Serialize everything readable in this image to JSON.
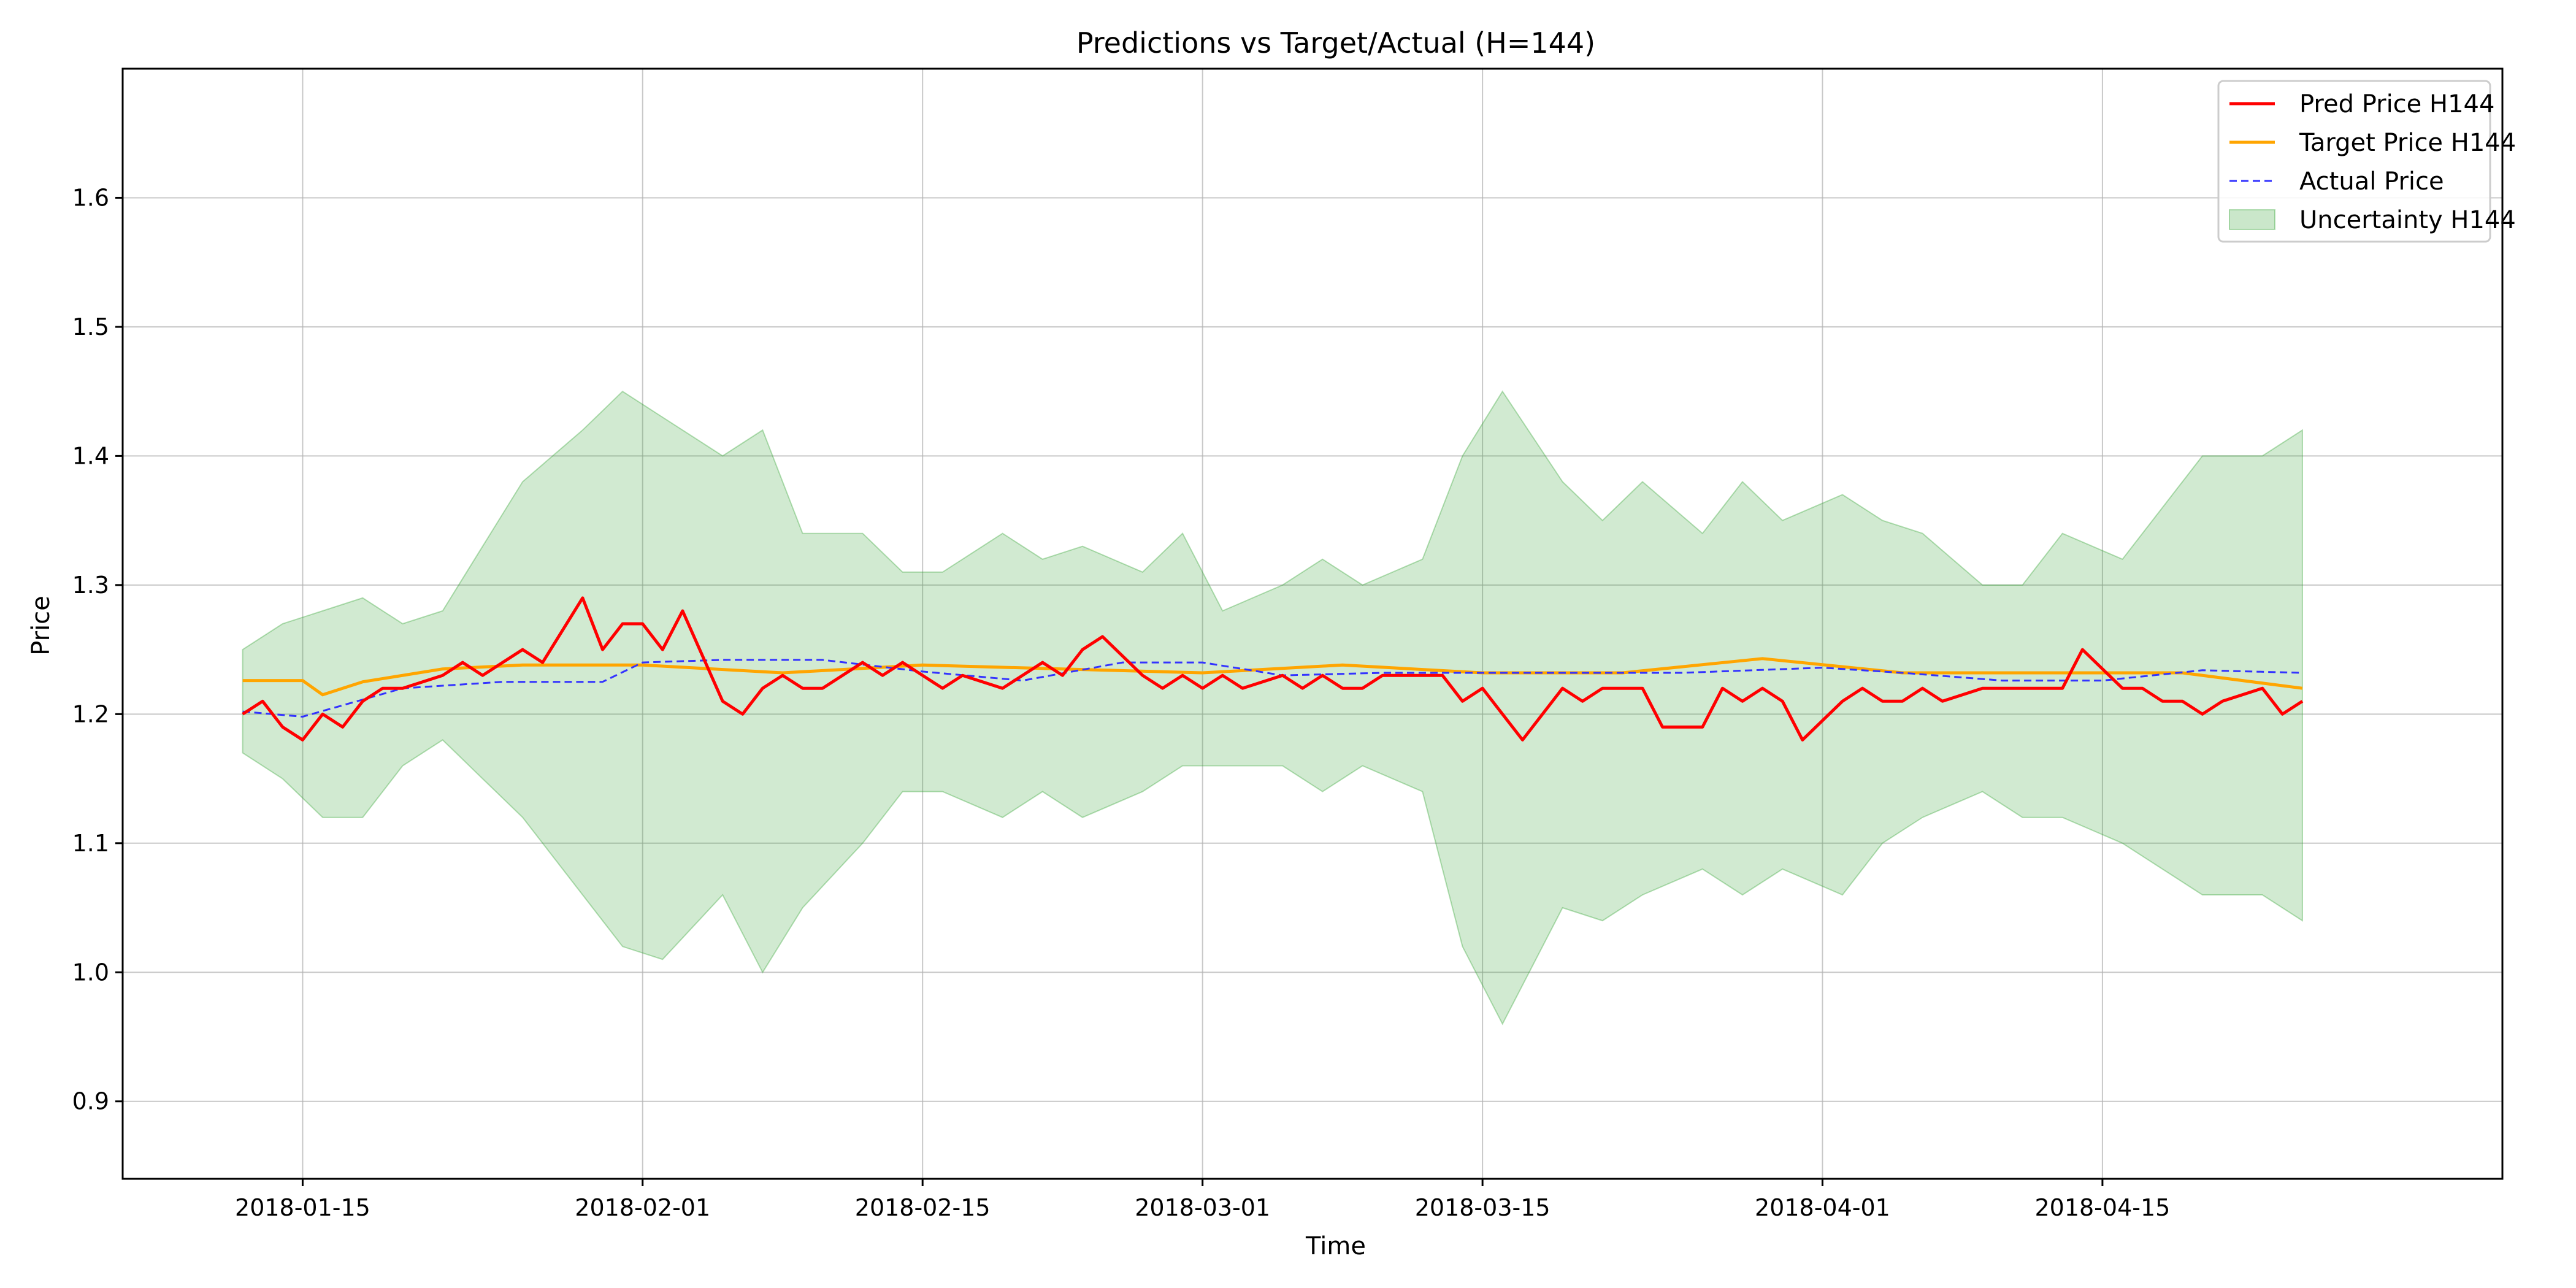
{
  "chart_data": {
    "type": "line",
    "title": "Predictions vs Target/Actual (H=144)",
    "xlabel": "Time",
    "ylabel": "Price",
    "x_axis_type": "date",
    "xlim": [
      "2018-01-06",
      "2018-05-05"
    ],
    "ylim": [
      0.84,
      1.7
    ],
    "grid": true,
    "legend_position": "top-right",
    "x_ticks": [
      "2018-01-15",
      "2018-02-01",
      "2018-02-15",
      "2018-03-01",
      "2018-03-15",
      "2018-04-01",
      "2018-04-15"
    ],
    "y_ticks": [
      0.9,
      1.0,
      1.1,
      1.2,
      1.3,
      1.4,
      1.5,
      1.6
    ],
    "y_tick_labels": [
      "0.9",
      "1.0",
      "1.1",
      "1.2",
      "1.3",
      "1.4",
      "1.5",
      "1.6"
    ],
    "series": [
      {
        "name": "Pred Price H144",
        "color": "#ff0000",
        "style": "solid",
        "x": [
          "2018-01-12",
          "2018-01-13",
          "2018-01-14",
          "2018-01-15",
          "2018-01-16",
          "2018-01-17",
          "2018-01-18",
          "2018-01-19",
          "2018-01-20",
          "2018-01-22",
          "2018-01-23",
          "2018-01-24",
          "2018-01-25",
          "2018-01-26",
          "2018-01-27",
          "2018-01-29",
          "2018-01-30",
          "2018-01-31",
          "2018-02-01",
          "2018-02-02",
          "2018-02-03",
          "2018-02-05",
          "2018-02-06",
          "2018-02-07",
          "2018-02-08",
          "2018-02-09",
          "2018-02-10",
          "2018-02-12",
          "2018-02-13",
          "2018-02-14",
          "2018-02-15",
          "2018-02-16",
          "2018-02-17",
          "2018-02-19",
          "2018-02-20",
          "2018-02-21",
          "2018-02-22",
          "2018-02-23",
          "2018-02-24",
          "2018-02-26",
          "2018-02-27",
          "2018-02-28",
          "2018-03-01",
          "2018-03-02",
          "2018-03-03",
          "2018-03-05",
          "2018-03-06",
          "2018-03-07",
          "2018-03-08",
          "2018-03-09",
          "2018-03-10",
          "2018-03-12",
          "2018-03-13",
          "2018-03-14",
          "2018-03-15",
          "2018-03-16",
          "2018-03-17",
          "2018-03-19",
          "2018-03-20",
          "2018-03-21",
          "2018-03-22",
          "2018-03-23",
          "2018-03-24",
          "2018-03-26",
          "2018-03-27",
          "2018-03-28",
          "2018-03-29",
          "2018-03-30",
          "2018-03-31",
          "2018-04-02",
          "2018-04-03",
          "2018-04-04",
          "2018-04-05",
          "2018-04-06",
          "2018-04-07",
          "2018-04-09",
          "2018-04-10",
          "2018-04-11",
          "2018-04-12",
          "2018-04-13",
          "2018-04-14",
          "2018-04-16",
          "2018-04-17",
          "2018-04-18",
          "2018-04-19",
          "2018-04-20",
          "2018-04-21",
          "2018-04-23",
          "2018-04-24",
          "2018-04-25"
        ],
        "y": [
          1.2,
          1.21,
          1.19,
          1.18,
          1.2,
          1.19,
          1.21,
          1.22,
          1.22,
          1.23,
          1.24,
          1.23,
          1.24,
          1.25,
          1.24,
          1.29,
          1.25,
          1.27,
          1.27,
          1.25,
          1.28,
          1.21,
          1.2,
          1.22,
          1.23,
          1.22,
          1.22,
          1.24,
          1.23,
          1.24,
          1.23,
          1.22,
          1.23,
          1.22,
          1.23,
          1.24,
          1.23,
          1.25,
          1.26,
          1.23,
          1.22,
          1.23,
          1.22,
          1.23,
          1.22,
          1.23,
          1.22,
          1.23,
          1.22,
          1.22,
          1.23,
          1.23,
          1.23,
          1.21,
          1.22,
          1.2,
          1.18,
          1.22,
          1.21,
          1.22,
          1.22,
          1.22,
          1.19,
          1.19,
          1.22,
          1.21,
          1.22,
          1.21,
          1.18,
          1.21,
          1.22,
          1.21,
          1.21,
          1.22,
          1.21,
          1.22,
          1.22,
          1.22,
          1.22,
          1.22,
          1.25,
          1.22,
          1.22,
          1.21,
          1.21,
          1.2,
          1.21,
          1.22,
          1.2,
          1.21
        ]
      },
      {
        "name": "Target Price H144",
        "color": "#ffa500",
        "style": "solid",
        "x": [
          "2018-01-12",
          "2018-01-15",
          "2018-01-16",
          "2018-01-18",
          "2018-01-22",
          "2018-01-26",
          "2018-02-01",
          "2018-02-08",
          "2018-02-15",
          "2018-02-22",
          "2018-03-01",
          "2018-03-08",
          "2018-03-15",
          "2018-03-22",
          "2018-03-29",
          "2018-04-05",
          "2018-04-12",
          "2018-04-19",
          "2018-04-25"
        ],
        "y": [
          1.226,
          1.226,
          1.215,
          1.225,
          1.235,
          1.238,
          1.238,
          1.232,
          1.238,
          1.235,
          1.232,
          1.238,
          1.232,
          1.232,
          1.243,
          1.232,
          1.232,
          1.232,
          1.22
        ]
      },
      {
        "name": "Actual Price",
        "color": "#3333ff",
        "style": "dashed",
        "x": [
          "2018-01-12",
          "2018-01-15",
          "2018-01-20",
          "2018-01-25",
          "2018-01-30",
          "2018-02-01",
          "2018-02-05",
          "2018-02-10",
          "2018-02-15",
          "2018-02-20",
          "2018-02-25",
          "2018-03-01",
          "2018-03-05",
          "2018-03-10",
          "2018-03-15",
          "2018-03-20",
          "2018-03-25",
          "2018-04-01",
          "2018-04-05",
          "2018-04-10",
          "2018-04-15",
          "2018-04-20",
          "2018-04-25"
        ],
        "y": [
          1.202,
          1.198,
          1.22,
          1.225,
          1.225,
          1.24,
          1.242,
          1.242,
          1.233,
          1.226,
          1.24,
          1.24,
          1.23,
          1.232,
          1.232,
          1.232,
          1.232,
          1.236,
          1.232,
          1.226,
          1.226,
          1.234,
          1.232
        ]
      }
    ],
    "band": {
      "name": "Uncertainty H144",
      "color": "#2ca02c",
      "opacity": 0.22,
      "x": [
        "2018-01-12",
        "2018-01-14",
        "2018-01-16",
        "2018-01-18",
        "2018-01-20",
        "2018-01-22",
        "2018-01-24",
        "2018-01-26",
        "2018-01-29",
        "2018-01-31",
        "2018-02-02",
        "2018-02-05",
        "2018-02-07",
        "2018-02-09",
        "2018-02-12",
        "2018-02-14",
        "2018-02-16",
        "2018-02-19",
        "2018-02-21",
        "2018-02-23",
        "2018-02-26",
        "2018-02-28",
        "2018-03-02",
        "2018-03-05",
        "2018-03-07",
        "2018-03-09",
        "2018-03-12",
        "2018-03-14",
        "2018-03-16",
        "2018-03-19",
        "2018-03-21",
        "2018-03-23",
        "2018-03-26",
        "2018-03-28",
        "2018-03-30",
        "2018-04-02",
        "2018-04-04",
        "2018-04-06",
        "2018-04-09",
        "2018-04-11",
        "2018-04-13",
        "2018-04-16",
        "2018-04-18",
        "2018-04-20",
        "2018-04-23",
        "2018-04-25"
      ],
      "upper": [
        1.25,
        1.27,
        1.28,
        1.29,
        1.27,
        1.28,
        1.33,
        1.38,
        1.42,
        1.45,
        1.43,
        1.4,
        1.42,
        1.34,
        1.34,
        1.31,
        1.31,
        1.34,
        1.32,
        1.33,
        1.31,
        1.34,
        1.28,
        1.3,
        1.32,
        1.3,
        1.32,
        1.4,
        1.45,
        1.38,
        1.35,
        1.38,
        1.34,
        1.38,
        1.35,
        1.37,
        1.35,
        1.34,
        1.3,
        1.3,
        1.34,
        1.32,
        1.36,
        1.4,
        1.4,
        1.42
      ],
      "lower": [
        1.17,
        1.15,
        1.12,
        1.12,
        1.16,
        1.18,
        1.15,
        1.12,
        1.06,
        1.02,
        1.01,
        1.06,
        1.0,
        1.05,
        1.1,
        1.14,
        1.14,
        1.12,
        1.14,
        1.12,
        1.14,
        1.16,
        1.16,
        1.16,
        1.14,
        1.16,
        1.14,
        1.02,
        0.96,
        1.05,
        1.04,
        1.06,
        1.08,
        1.06,
        1.08,
        1.06,
        1.1,
        1.12,
        1.14,
        1.12,
        1.12,
        1.1,
        1.08,
        1.06,
        1.06,
        1.04
      ]
    }
  }
}
